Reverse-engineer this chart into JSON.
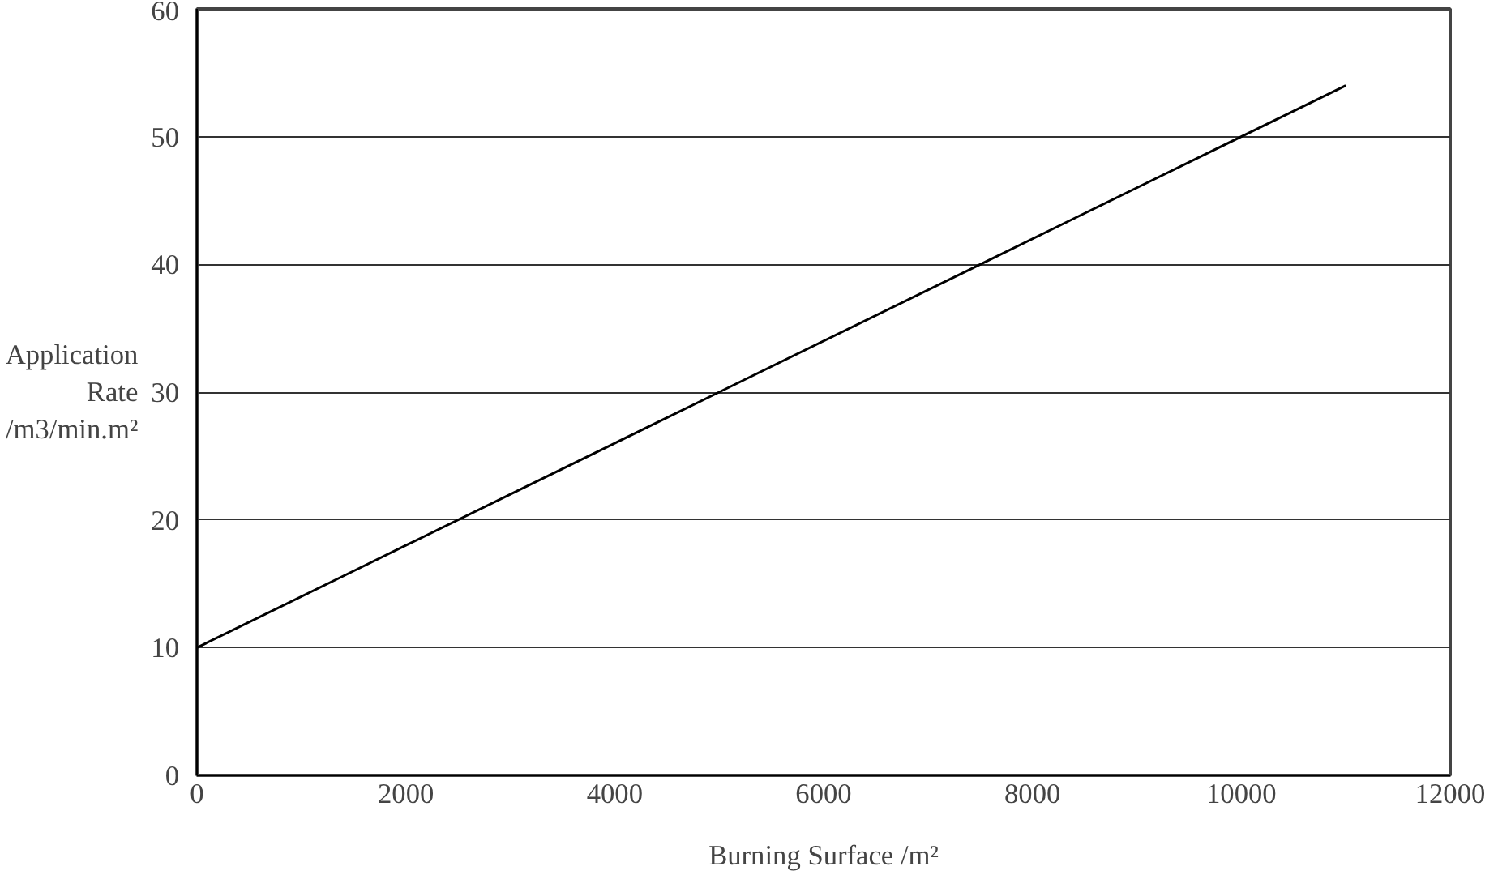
{
  "chart_data": {
    "type": "line",
    "xlabel": "Burning Surface /m²",
    "ylabel": "Application\nRate\n/m3/min.m²",
    "x": [
      0,
      1500,
      2000,
      3500,
      4000,
      5000,
      7500,
      8500,
      9000,
      10000,
      11000
    ],
    "series": [
      {
        "color": "#000000",
        "values": [
          10,
          16,
          18,
          24,
          26,
          30,
          40,
          44,
          46,
          50,
          54
        ]
      }
    ],
    "xlim": [
      0,
      12000
    ],
    "xticks": [
      0,
      2000,
      4000,
      6000,
      8000,
      10000,
      12000
    ],
    "ylim": [
      0,
      60
    ],
    "yticks": [
      0,
      10,
      20,
      30,
      40,
      50,
      60
    ],
    "grid": "y",
    "marker": "none",
    "line_style": "solid"
  }
}
